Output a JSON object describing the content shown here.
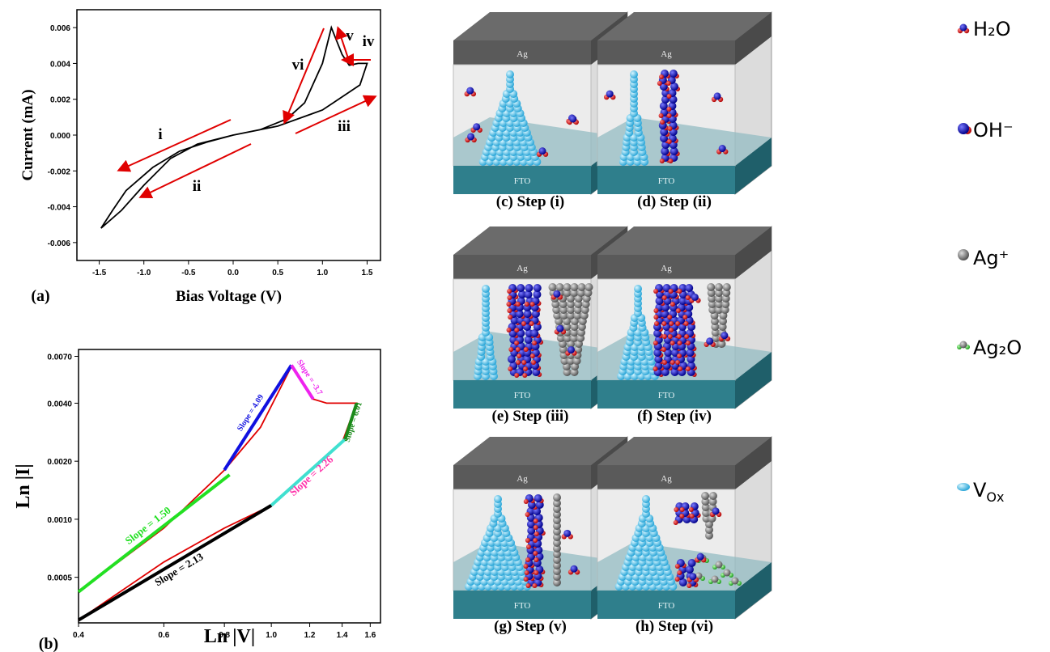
{
  "chart_data": [
    {
      "type": "line",
      "panel": "(a)",
      "xlabel": "Bias Voltage (V)",
      "ylabel": "Current (mA)",
      "xlim": [
        -1.75,
        1.65
      ],
      "ylim": [
        -0.007,
        0.007
      ],
      "xticks": [
        {
          "value": -1.5,
          "label": "-1.5"
        },
        {
          "value": -1,
          "label": "-1.0"
        },
        {
          "value": -0.5,
          "label": "-0.5"
        },
        {
          "value": 0,
          "label": "0.0"
        },
        {
          "value": 0.5,
          "label": "0.5"
        },
        {
          "value": 1,
          "label": "1.0"
        },
        {
          "value": 1.5,
          "label": "1.5"
        }
      ],
      "yticks": [
        -0.006,
        -0.004,
        -0.002,
        {
          "value": 0,
          "label": "0.000"
        },
        0.002,
        0.004,
        0.006
      ],
      "series": [
        {
          "color": "#000000",
          "x": [
            0,
            -0.3,
            -0.6,
            -0.9,
            -1.2,
            -1.35,
            -1.48,
            -1.25,
            -1.0,
            -0.7,
            -0.4,
            0,
            0.5,
            1.0,
            1.3,
            1.42,
            1.5,
            1.4,
            1.3,
            1.22,
            1.1,
            1.0,
            0.8,
            0.6,
            0.3,
            0
          ],
          "values": [
            0,
            -0.0004,
            -0.0009,
            -0.0018,
            -0.0031,
            -0.0042,
            -0.0052,
            -0.0042,
            -0.0028,
            -0.0013,
            -0.0005,
            0,
            0.0005,
            0.0014,
            0.0024,
            0.0028,
            0.004,
            0.004,
            0.0039,
            0.0045,
            0.006,
            0.004,
            0.0018,
            0.0009,
            0.0003,
            0
          ]
        }
      ],
      "annotations": [
        "i",
        "ii",
        "iii",
        "iv",
        "v",
        "vi"
      ]
    },
    {
      "type": "line",
      "panel": "(b)",
      "xlabel": "Ln |V|",
      "ylabel": "Ln |I|",
      "log_x": true,
      "log_y": true,
      "xlim": [
        0.4,
        1.68
      ],
      "ylim": [
        0.00029,
        0.0076
      ],
      "xticks": [
        0.4,
        0.6,
        0.8,
        {
          "value": 1,
          "label": "1.0"
        },
        1.2,
        1.4,
        1.6
      ],
      "yticks": [
        0.0005,
        {
          "value": 0.001,
          "label": "0.0010"
        },
        {
          "value": 0.002,
          "label": "0.0020"
        },
        {
          "value": 0.004,
          "label": "0.0040"
        },
        {
          "value": 0.007,
          "label": "0.0070"
        }
      ],
      "series": [
        {
          "color": "#e00000",
          "x": [
            0.4,
            0.6,
            0.8,
            1.0,
            1.2,
            1.4,
            1.5,
            1.4,
            1.3,
            1.22,
            1.1,
            0.95,
            0.8,
            0.6,
            0.4
          ],
          "values": [
            0.0003,
            0.0006,
            0.0009,
            0.00118,
            0.0018,
            0.0025,
            0.004,
            0.004,
            0.004,
            0.0042,
            0.0062,
            0.003,
            0.0018,
            0.0009,
            0.00042
          ]
        }
      ],
      "fits": [
        {
          "label": "Slope = 1.50",
          "color": "#22e022",
          "label_color": "#22e022",
          "x": [
            0.4,
            0.82
          ],
          "values": [
            0.00042,
            0.0017
          ]
        },
        {
          "label": "Slope = 2.13",
          "color": "#000000",
          "label_color": "#000000",
          "x": [
            0.4,
            1.0
          ],
          "values": [
            0.0003,
            0.00118
          ]
        },
        {
          "label": "Slope = 2.26",
          "color": "#40e0d0",
          "label_color": "#ff33aa",
          "x": [
            1.0,
            1.42
          ],
          "values": [
            0.00118,
            0.0026
          ]
        },
        {
          "label": "Slope = 6.01",
          "color": "#1a8a1a",
          "label_color": "#1a8a1a",
          "x": [
            1.42,
            1.5
          ],
          "values": [
            0.0026,
            0.004
          ]
        },
        {
          "label": "Slope = 4.09",
          "color": "#1010e0",
          "label_color": "#1010e0",
          "x": [
            0.8,
            1.1
          ],
          "values": [
            0.0018,
            0.0063
          ]
        },
        {
          "label": "Slope = -3.7",
          "color": "#ee22ee",
          "label_color": "#ee22ee",
          "x": [
            1.1,
            1.22
          ],
          "values": [
            0.0063,
            0.0042
          ]
        }
      ]
    }
  ],
  "panels": [
    {
      "caption": "(c) Step (i)",
      "top": "Ag",
      "bottom": "FTO"
    },
    {
      "caption": "(d) Step (ii)",
      "top": "Ag",
      "bottom": "FTO"
    },
    {
      "caption": "(e) Step (iii)",
      "top": "Ag",
      "bottom": "FTO"
    },
    {
      "caption": "(f) Step (iv)",
      "top": "Ag",
      "bottom": "FTO"
    },
    {
      "caption": "(g) Step (v)",
      "top": "Ag",
      "bottom": "FTO"
    },
    {
      "caption": "(h) Step (vi)",
      "top": "Ag",
      "bottom": "FTO"
    }
  ],
  "legend": [
    {
      "label": "H₂O"
    },
    {
      "label": "OH⁻"
    },
    {
      "label": "Ag⁺"
    },
    {
      "label": "Ag₂O"
    },
    {
      "label": "V",
      "subscript": "Ox"
    }
  ]
}
